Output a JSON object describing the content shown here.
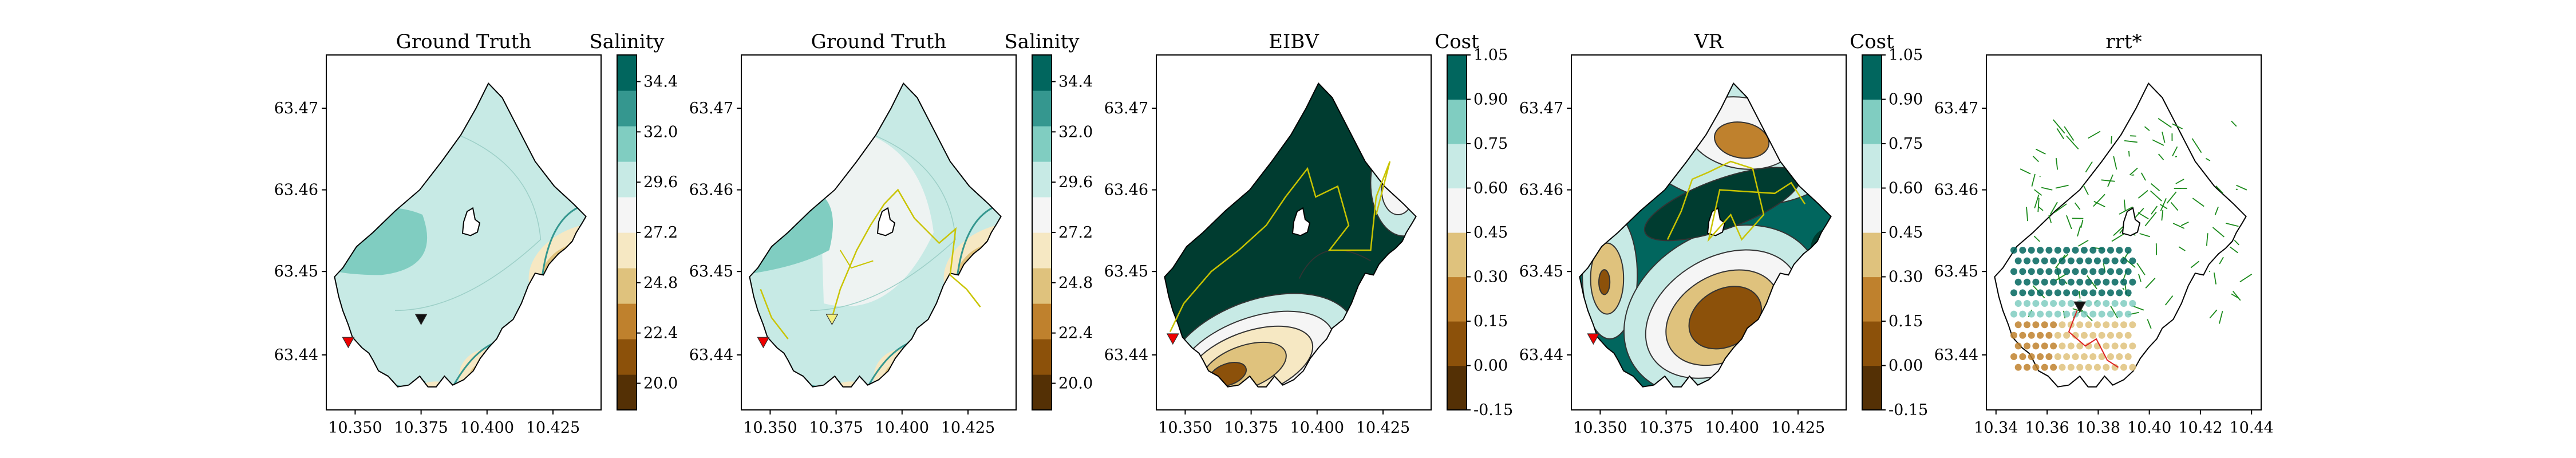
{
  "figure": {
    "panels": [
      {
        "title": "Ground Truth",
        "kind": "salinity",
        "xticks": [
          "10.350",
          "10.375",
          "10.400",
          "10.425"
        ],
        "yticks": [
          "63.47",
          "63.46",
          "63.45",
          "63.44"
        ],
        "colorbar": {
          "label": "Salinity",
          "ticks": [
            "34.4",
            "32.0",
            "29.6",
            "27.2",
            "24.8",
            "22.4",
            "20.0"
          ]
        },
        "markers": {
          "start": "red-down-triangle",
          "end": "black-down-triangle"
        },
        "path": false
      },
      {
        "title": "Ground Truth",
        "kind": "salinity",
        "xticks": [
          "10.350",
          "10.375",
          "10.400",
          "10.425"
        ],
        "yticks": [
          "63.47",
          "63.46",
          "63.45",
          "63.44"
        ],
        "colorbar": {
          "label": "Salinity",
          "ticks": [
            "34.4",
            "32.0",
            "29.6",
            "27.2",
            "24.8",
            "22.4",
            "20.0"
          ]
        },
        "markers": {
          "start": "red-down-triangle",
          "end": "yellow-down-triangle"
        },
        "path": true
      },
      {
        "title": "EIBV",
        "kind": "cost",
        "xticks": [
          "10.350",
          "10.375",
          "10.400",
          "10.425"
        ],
        "yticks": [
          "63.47",
          "63.46",
          "63.45",
          "63.44"
        ],
        "colorbar": {
          "label": "Cost",
          "ticks": [
            "1.05",
            "0.90",
            "0.75",
            "0.60",
            "0.45",
            "0.30",
            "0.15",
            "0.00",
            "-0.15"
          ]
        },
        "path": true
      },
      {
        "title": "VR",
        "kind": "cost",
        "xticks": [
          "10.350",
          "10.375",
          "10.400",
          "10.425"
        ],
        "yticks": [
          "63.47",
          "63.46",
          "63.45",
          "63.44"
        ],
        "colorbar": {
          "label": "Cost",
          "ticks": [
            "1.05",
            "0.90",
            "0.75",
            "0.60",
            "0.45",
            "0.30",
            "0.15",
            "0.00",
            "-0.15"
          ]
        },
        "path": true
      },
      {
        "title": "rrt*",
        "kind": "tree",
        "xticks": [
          "10.34",
          "10.36",
          "10.38",
          "10.40",
          "10.42",
          "10.44"
        ],
        "yticks": [
          "63.47",
          "63.46",
          "63.45",
          "63.44"
        ],
        "path": true
      }
    ],
    "colors": {
      "sal": [
        "#543005",
        "#8c510a",
        "#bf812d",
        "#dfc27d",
        "#f6e8c3",
        "#f5f5f5",
        "#c7eae5",
        "#80cdc1",
        "#35978f",
        "#01665e",
        "#003c30"
      ],
      "path": "#c9c400",
      "tree": "#1a8a1a",
      "redline": "#dd2222",
      "start": "#ee0000"
    }
  },
  "chart_data": [
    {
      "type": "heatmap",
      "title": "Ground Truth",
      "colorbar_label": "Salinity",
      "colorbar_range": [
        20.0,
        34.4
      ],
      "x_ticks": [
        10.35,
        10.375,
        10.4,
        10.425
      ],
      "y_ticks": [
        63.44,
        63.45,
        63.46,
        63.47
      ]
    },
    {
      "type": "heatmap",
      "title": "Ground Truth",
      "colorbar_label": "Salinity",
      "colorbar_range": [
        20.0,
        34.4
      ],
      "x_ticks": [
        10.35,
        10.375,
        10.4,
        10.425
      ],
      "y_ticks": [
        63.44,
        63.45,
        63.46,
        63.47
      ]
    },
    {
      "type": "heatmap",
      "title": "EIBV",
      "colorbar_label": "Cost",
      "colorbar_range": [
        -0.15,
        1.05
      ],
      "x_ticks": [
        10.35,
        10.375,
        10.4,
        10.425
      ],
      "y_ticks": [
        63.44,
        63.45,
        63.46,
        63.47
      ]
    },
    {
      "type": "heatmap",
      "title": "VR",
      "colorbar_label": "Cost",
      "colorbar_range": [
        -0.15,
        1.05
      ],
      "x_ticks": [
        10.35,
        10.375,
        10.4,
        10.425
      ],
      "y_ticks": [
        63.44,
        63.45,
        63.46,
        63.47
      ]
    },
    {
      "type": "scatter",
      "title": "rrt*",
      "x_ticks": [
        10.34,
        10.36,
        10.38,
        10.4,
        10.42,
        10.44
      ],
      "y_ticks": [
        63.44,
        63.45,
        63.46,
        63.47
      ]
    }
  ]
}
